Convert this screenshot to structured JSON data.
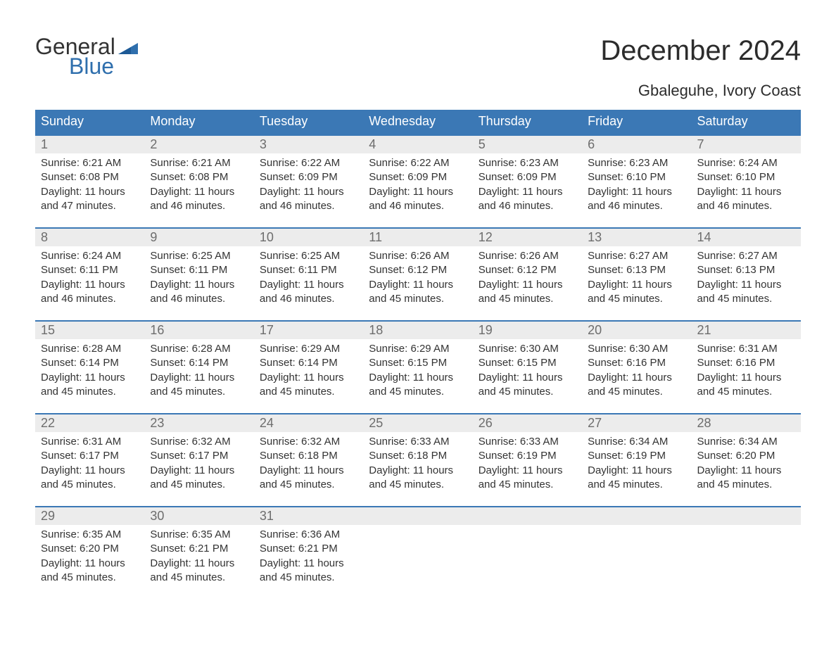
{
  "brand": {
    "line1": "General",
    "line2": "Blue"
  },
  "title": "December 2024",
  "location": "Gbaleguhe, Ivory Coast",
  "colors": {
    "header_bg": "#3b78b5",
    "header_text": "#ffffff",
    "row_border": "#3b78b5",
    "daynum_bg": "#ececec",
    "daynum_text": "#6d6d6d",
    "body_text": "#333333",
    "brand_blue": "#2f6fad",
    "page_bg": "#ffffff"
  },
  "layout": {
    "columns": 7,
    "weeks": 5
  },
  "days_of_week": [
    "Sunday",
    "Monday",
    "Tuesday",
    "Wednesday",
    "Thursday",
    "Friday",
    "Saturday"
  ],
  "weeks": [
    [
      {
        "n": "1",
        "sunrise": "6:21 AM",
        "sunset": "6:08 PM",
        "daylight": "11 hours and 47 minutes."
      },
      {
        "n": "2",
        "sunrise": "6:21 AM",
        "sunset": "6:08 PM",
        "daylight": "11 hours and 46 minutes."
      },
      {
        "n": "3",
        "sunrise": "6:22 AM",
        "sunset": "6:09 PM",
        "daylight": "11 hours and 46 minutes."
      },
      {
        "n": "4",
        "sunrise": "6:22 AM",
        "sunset": "6:09 PM",
        "daylight": "11 hours and 46 minutes."
      },
      {
        "n": "5",
        "sunrise": "6:23 AM",
        "sunset": "6:09 PM",
        "daylight": "11 hours and 46 minutes."
      },
      {
        "n": "6",
        "sunrise": "6:23 AM",
        "sunset": "6:10 PM",
        "daylight": "11 hours and 46 minutes."
      },
      {
        "n": "7",
        "sunrise": "6:24 AM",
        "sunset": "6:10 PM",
        "daylight": "11 hours and 46 minutes."
      }
    ],
    [
      {
        "n": "8",
        "sunrise": "6:24 AM",
        "sunset": "6:11 PM",
        "daylight": "11 hours and 46 minutes."
      },
      {
        "n": "9",
        "sunrise": "6:25 AM",
        "sunset": "6:11 PM",
        "daylight": "11 hours and 46 minutes."
      },
      {
        "n": "10",
        "sunrise": "6:25 AM",
        "sunset": "6:11 PM",
        "daylight": "11 hours and 46 minutes."
      },
      {
        "n": "11",
        "sunrise": "6:26 AM",
        "sunset": "6:12 PM",
        "daylight": "11 hours and 45 minutes."
      },
      {
        "n": "12",
        "sunrise": "6:26 AM",
        "sunset": "6:12 PM",
        "daylight": "11 hours and 45 minutes."
      },
      {
        "n": "13",
        "sunrise": "6:27 AM",
        "sunset": "6:13 PM",
        "daylight": "11 hours and 45 minutes."
      },
      {
        "n": "14",
        "sunrise": "6:27 AM",
        "sunset": "6:13 PM",
        "daylight": "11 hours and 45 minutes."
      }
    ],
    [
      {
        "n": "15",
        "sunrise": "6:28 AM",
        "sunset": "6:14 PM",
        "daylight": "11 hours and 45 minutes."
      },
      {
        "n": "16",
        "sunrise": "6:28 AM",
        "sunset": "6:14 PM",
        "daylight": "11 hours and 45 minutes."
      },
      {
        "n": "17",
        "sunrise": "6:29 AM",
        "sunset": "6:14 PM",
        "daylight": "11 hours and 45 minutes."
      },
      {
        "n": "18",
        "sunrise": "6:29 AM",
        "sunset": "6:15 PM",
        "daylight": "11 hours and 45 minutes."
      },
      {
        "n": "19",
        "sunrise": "6:30 AM",
        "sunset": "6:15 PM",
        "daylight": "11 hours and 45 minutes."
      },
      {
        "n": "20",
        "sunrise": "6:30 AM",
        "sunset": "6:16 PM",
        "daylight": "11 hours and 45 minutes."
      },
      {
        "n": "21",
        "sunrise": "6:31 AM",
        "sunset": "6:16 PM",
        "daylight": "11 hours and 45 minutes."
      }
    ],
    [
      {
        "n": "22",
        "sunrise": "6:31 AM",
        "sunset": "6:17 PM",
        "daylight": "11 hours and 45 minutes."
      },
      {
        "n": "23",
        "sunrise": "6:32 AM",
        "sunset": "6:17 PM",
        "daylight": "11 hours and 45 minutes."
      },
      {
        "n": "24",
        "sunrise": "6:32 AM",
        "sunset": "6:18 PM",
        "daylight": "11 hours and 45 minutes."
      },
      {
        "n": "25",
        "sunrise": "6:33 AM",
        "sunset": "6:18 PM",
        "daylight": "11 hours and 45 minutes."
      },
      {
        "n": "26",
        "sunrise": "6:33 AM",
        "sunset": "6:19 PM",
        "daylight": "11 hours and 45 minutes."
      },
      {
        "n": "27",
        "sunrise": "6:34 AM",
        "sunset": "6:19 PM",
        "daylight": "11 hours and 45 minutes."
      },
      {
        "n": "28",
        "sunrise": "6:34 AM",
        "sunset": "6:20 PM",
        "daylight": "11 hours and 45 minutes."
      }
    ],
    [
      {
        "n": "29",
        "sunrise": "6:35 AM",
        "sunset": "6:20 PM",
        "daylight": "11 hours and 45 minutes."
      },
      {
        "n": "30",
        "sunrise": "6:35 AM",
        "sunset": "6:21 PM",
        "daylight": "11 hours and 45 minutes."
      },
      {
        "n": "31",
        "sunrise": "6:36 AM",
        "sunset": "6:21 PM",
        "daylight": "11 hours and 45 minutes."
      },
      null,
      null,
      null,
      null
    ]
  ],
  "labels": {
    "sunrise": "Sunrise: ",
    "sunset": "Sunset: ",
    "daylight": "Daylight: "
  }
}
